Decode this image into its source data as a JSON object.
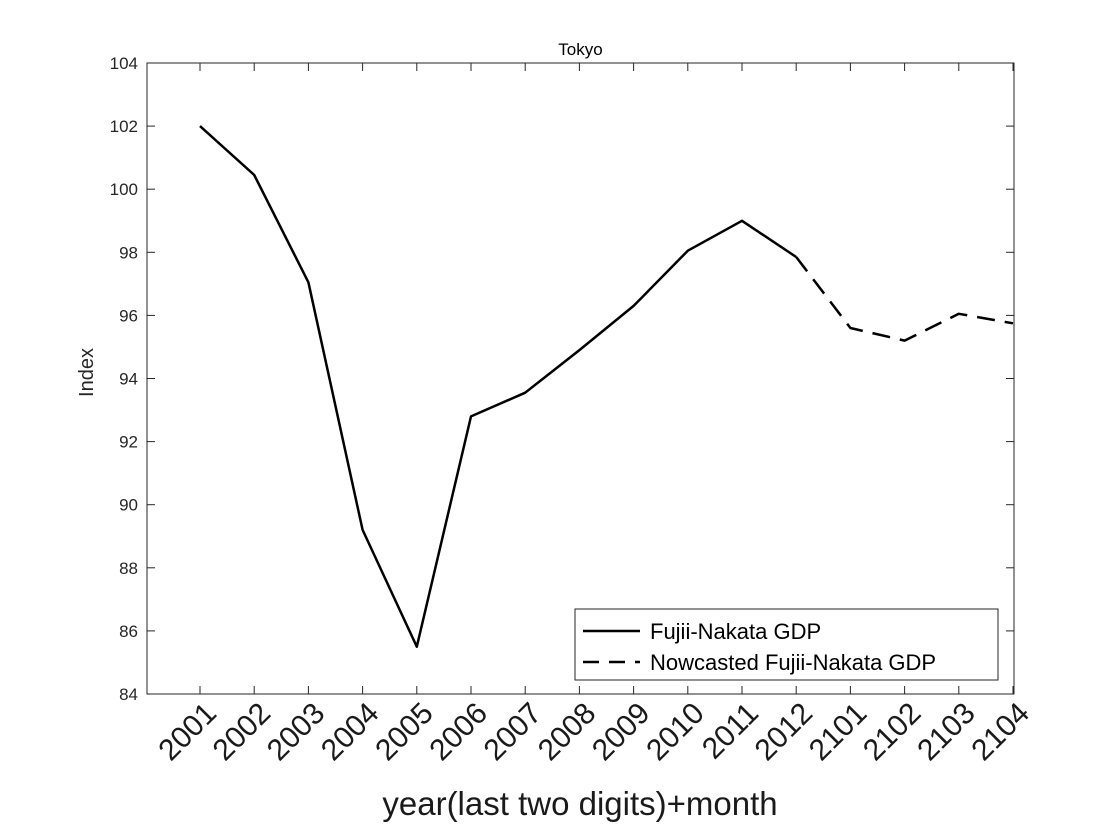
{
  "chart_data": {
    "type": "line",
    "title": "Tokyo",
    "xlabel": "year(last two digits)+month",
    "ylabel": "Index",
    "categories": [
      "2001",
      "2002",
      "2003",
      "2004",
      "2005",
      "2006",
      "2007",
      "2008",
      "2009",
      "2010",
      "2011",
      "2012",
      "2101",
      "2102",
      "2103",
      "2104"
    ],
    "ylim": [
      84,
      104
    ],
    "yticks": [
      84,
      86,
      88,
      90,
      92,
      94,
      96,
      98,
      100,
      102,
      104
    ],
    "series": [
      {
        "name": "Fujii-Nakata GDP",
        "style": "solid",
        "values": [
          102.0,
          100.45,
          97.05,
          89.2,
          85.5,
          92.8,
          93.55,
          94.9,
          96.3,
          98.05,
          99.0,
          97.85,
          null,
          null,
          null,
          null
        ]
      },
      {
        "name": "Nowcasted Fujii-Nakata GDP",
        "style": "dashed",
        "values": [
          null,
          null,
          null,
          null,
          null,
          null,
          null,
          null,
          null,
          null,
          null,
          97.85,
          95.6,
          95.2,
          96.05,
          95.75
        ]
      }
    ],
    "legend_position": "bottom-right",
    "line_color": "#000000"
  }
}
